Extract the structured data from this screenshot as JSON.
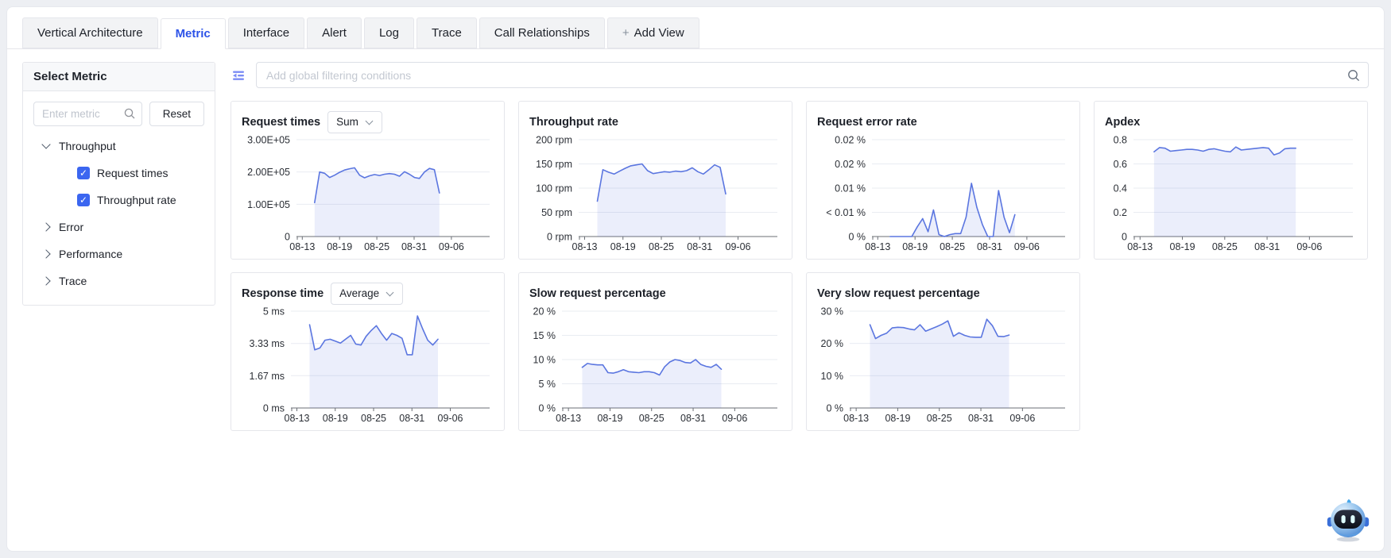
{
  "tabs": {
    "items": [
      {
        "label": "Vertical Architecture",
        "active": false
      },
      {
        "label": "Metric",
        "active": true
      },
      {
        "label": "Interface",
        "active": false
      },
      {
        "label": "Alert",
        "active": false
      },
      {
        "label": "Log",
        "active": false
      },
      {
        "label": "Trace",
        "active": false
      },
      {
        "label": "Call Relationships",
        "active": false
      }
    ],
    "add_view_label": "Add View",
    "add_view_plus": "+"
  },
  "sidebar": {
    "title": "Select Metric",
    "search_placeholder": "Enter metric",
    "reset_label": "Reset",
    "tree": [
      {
        "label": "Throughput",
        "expanded": true,
        "children": [
          {
            "label": "Request times",
            "checked": true
          },
          {
            "label": "Throughput rate",
            "checked": true
          }
        ]
      },
      {
        "label": "Error",
        "expanded": false,
        "children": []
      },
      {
        "label": "Performance",
        "expanded": false,
        "children": []
      },
      {
        "label": "Trace",
        "expanded": false,
        "children": []
      }
    ]
  },
  "filter_bar": {
    "placeholder": "Add global filtering conditions"
  },
  "colors": {
    "accent": "#2d53e8",
    "line": "#5b76e0",
    "area_fill": "#5b76e0",
    "area_opacity": 0.12,
    "grid": "#e9ecf2",
    "axis": "#6b6f76",
    "tick_text": "#2b2f36",
    "checkbox": "#3b66f0",
    "filter_icon": "#7b8cf5"
  },
  "chart_data": [
    {
      "type": "area",
      "title": "Request times",
      "aggregator": "Sum",
      "row": 1,
      "xlabel": "",
      "ylabel": "",
      "x_ticks": [
        "08-13",
        "08-19",
        "08-25",
        "08-31",
        "09-06"
      ],
      "ylim": [
        0,
        300000
      ],
      "y_ticks": [
        {
          "label": "3.00E+05",
          "value": 300000
        },
        {
          "label": "2.00E+05",
          "value": 200000
        },
        {
          "label": "1.00E+05",
          "value": 100000
        },
        {
          "label": "0",
          "value": 0
        }
      ],
      "x_span": [
        0.094,
        0.74
      ],
      "values": [
        105000,
        200000,
        196000,
        183000,
        190000,
        199000,
        206000,
        210000,
        213000,
        190000,
        182000,
        188000,
        192000,
        189000,
        193000,
        195000,
        193000,
        187000,
        201000,
        193000,
        183000,
        180000,
        200000,
        211000,
        207000,
        135000
      ]
    },
    {
      "type": "area",
      "title": "Throughput rate",
      "aggregator": null,
      "row": 1,
      "xlabel": "",
      "ylabel": "",
      "x_ticks": [
        "08-13",
        "08-19",
        "08-25",
        "08-31",
        "09-06"
      ],
      "ylim": [
        0,
        200
      ],
      "y_ticks": [
        {
          "label": "200 rpm",
          "value": 200
        },
        {
          "label": "150 rpm",
          "value": 150
        },
        {
          "label": "100 rpm",
          "value": 100
        },
        {
          "label": "50 rpm",
          "value": 50
        },
        {
          "label": "0 rpm",
          "value": 0
        }
      ],
      "x_span": [
        0.094,
        0.74
      ],
      "values": [
        73,
        138,
        133,
        129,
        135,
        141,
        146,
        148,
        150,
        136,
        130,
        132,
        134,
        133,
        135,
        134,
        136,
        142,
        134,
        129,
        138,
        148,
        143,
        88
      ]
    },
    {
      "type": "area",
      "title": "Request error rate",
      "aggregator": null,
      "row": 1,
      "xlabel": "",
      "ylabel": "",
      "x_ticks": [
        "08-13",
        "08-19",
        "08-25",
        "08-31",
        "09-06"
      ],
      "ylim": [
        0,
        0.02
      ],
      "y_ticks": [
        {
          "label": "0.02 %",
          "value": 0.02
        },
        {
          "label": "0.02 %",
          "value": 0.015
        },
        {
          "label": "0.01 %",
          "value": 0.01
        },
        {
          "label": "< 0.01 %",
          "value": 0.005
        },
        {
          "label": "0 %",
          "value": 0
        }
      ],
      "x_span": [
        0.094,
        0.74
      ],
      "values": [
        0,
        0,
        0,
        0,
        0,
        0.002,
        0.0037,
        0.001,
        0.0055,
        0.0004,
        0,
        0.0004,
        0.0006,
        0.0006,
        0.004,
        0.011,
        0.006,
        0.0025,
        0,
        0,
        0.0095,
        0.004,
        0.0008,
        0.0045
      ]
    },
    {
      "type": "area",
      "title": "Apdex",
      "aggregator": null,
      "row": 1,
      "xlabel": "",
      "ylabel": "",
      "x_ticks": [
        "08-13",
        "08-19",
        "08-25",
        "08-31",
        "09-06"
      ],
      "ylim": [
        0,
        0.8
      ],
      "y_ticks": [
        {
          "label": "0.8",
          "value": 0.8
        },
        {
          "label": "0.6",
          "value": 0.6
        },
        {
          "label": "0.4",
          "value": 0.4
        },
        {
          "label": "0.2",
          "value": 0.2
        },
        {
          "label": "0",
          "value": 0
        }
      ],
      "x_span": [
        0.094,
        0.74
      ],
      "values": [
        0.7,
        0.735,
        0.73,
        0.705,
        0.71,
        0.715,
        0.72,
        0.72,
        0.715,
        0.705,
        0.72,
        0.725,
        0.715,
        0.705,
        0.7,
        0.74,
        0.715,
        0.72,
        0.725,
        0.73,
        0.735,
        0.73,
        0.675,
        0.69,
        0.725,
        0.73,
        0.73
      ]
    },
    {
      "type": "area",
      "title": "Response time",
      "aggregator": "Average",
      "row": 2,
      "xlabel": "",
      "ylabel": "",
      "x_ticks": [
        "08-13",
        "08-19",
        "08-25",
        "08-31",
        "09-06"
      ],
      "ylim": [
        0,
        5
      ],
      "y_ticks": [
        {
          "label": "5 ms",
          "value": 5
        },
        {
          "label": "3.33 ms",
          "value": 3.33
        },
        {
          "label": "1.67 ms",
          "value": 1.67
        },
        {
          "label": "0 ms",
          "value": 0
        }
      ],
      "x_span": [
        0.094,
        0.74
      ],
      "values": [
        4.3,
        3.0,
        3.1,
        3.5,
        3.55,
        3.45,
        3.35,
        3.55,
        3.75,
        3.3,
        3.25,
        3.7,
        4.0,
        4.25,
        3.85,
        3.5,
        3.85,
        3.75,
        3.6,
        2.75,
        2.75,
        4.75,
        4.1,
        3.5,
        3.25,
        3.55
      ]
    },
    {
      "type": "area",
      "title": "Slow request percentage",
      "aggregator": null,
      "row": 2,
      "xlabel": "",
      "ylabel": "",
      "x_ticks": [
        "08-13",
        "08-19",
        "08-25",
        "08-31",
        "09-06"
      ],
      "ylim": [
        0,
        20
      ],
      "y_ticks": [
        {
          "label": "20 %",
          "value": 20
        },
        {
          "label": "15 %",
          "value": 15
        },
        {
          "label": "10 %",
          "value": 10
        },
        {
          "label": "5 %",
          "value": 5
        },
        {
          "label": "0 %",
          "value": 0
        }
      ],
      "x_span": [
        0.094,
        0.74
      ],
      "values": [
        8.4,
        9.2,
        9.0,
        8.9,
        8.9,
        7.3,
        7.2,
        7.5,
        7.9,
        7.5,
        7.4,
        7.3,
        7.5,
        7.5,
        7.3,
        6.8,
        8.5,
        9.5,
        10.0,
        9.8,
        9.4,
        9.3,
        10.0,
        9.0,
        8.6,
        8.4,
        9.0,
        8.0
      ]
    },
    {
      "type": "area",
      "title": "Very slow request percentage",
      "aggregator": null,
      "row": 2,
      "xlabel": "",
      "ylabel": "",
      "x_ticks": [
        "08-13",
        "08-19",
        "08-25",
        "08-31",
        "09-06"
      ],
      "ylim": [
        0,
        30
      ],
      "y_ticks": [
        {
          "label": "30 %",
          "value": 30
        },
        {
          "label": "20 %",
          "value": 20
        },
        {
          "label": "10 %",
          "value": 10
        },
        {
          "label": "0 %",
          "value": 0
        }
      ],
      "x_span": [
        0.094,
        0.74
      ],
      "values": [
        25.8,
        21.5,
        22.5,
        23.2,
        24.8,
        25.0,
        24.9,
        24.5,
        24.2,
        25.8,
        23.8,
        24.5,
        25.2,
        26.0,
        27.0,
        22.2,
        23.3,
        22.5,
        22.0,
        21.9,
        21.9,
        27.5,
        25.5,
        22.2,
        22.1,
        22.6
      ]
    }
  ],
  "assistant": {
    "name": "chat-assistant-robot"
  }
}
